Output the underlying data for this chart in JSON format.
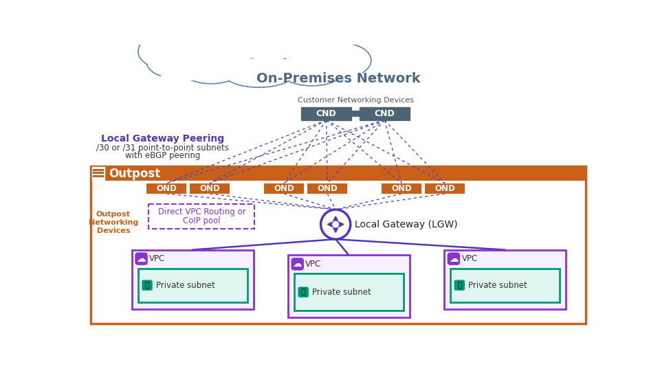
{
  "bg_color": "#ffffff",
  "title_cloud": "On-Premises Network",
  "cnd_label": "Customer Networking Devices",
  "cnd_color": "#4d6475",
  "cnd_text_color": "#ffffff",
  "ond_color": "#c8601a",
  "ond_text_color": "#ffffff",
  "outpost_border_color": "#c8601a",
  "outpost_bg_color": "#ffffff",
  "outpost_label_color": "#c8601a",
  "outpost_header_color": "#c8601a",
  "lgw_peering_title": "Local Gateway Peering",
  "lgw_peering_color": "#5533bb",
  "lgw_peering_desc1": "/30 or /31 point-to-point subnets",
  "lgw_peering_desc2": "with eBGP peering",
  "lgw_label": "Local Gateway (LGW)",
  "lgw_color": "#5533bb",
  "dotted_line_color": "#4444bb",
  "vpc_border_color": "#8833cc",
  "vpc_bg_color": "#f8f0ff",
  "vpc_icon_color": "#8833cc",
  "subnet_border_color": "#009977",
  "subnet_bg_color": "#dff5ef",
  "subnet_label": "Private subnet",
  "direct_vpc_label1": "Direct VPC Routing or",
  "direct_vpc_label2": "CoIP pool",
  "direct_vpc_color": "#8833cc",
  "cloud_color": "#6688aa",
  "outpost_icon_color": "#c8601a"
}
